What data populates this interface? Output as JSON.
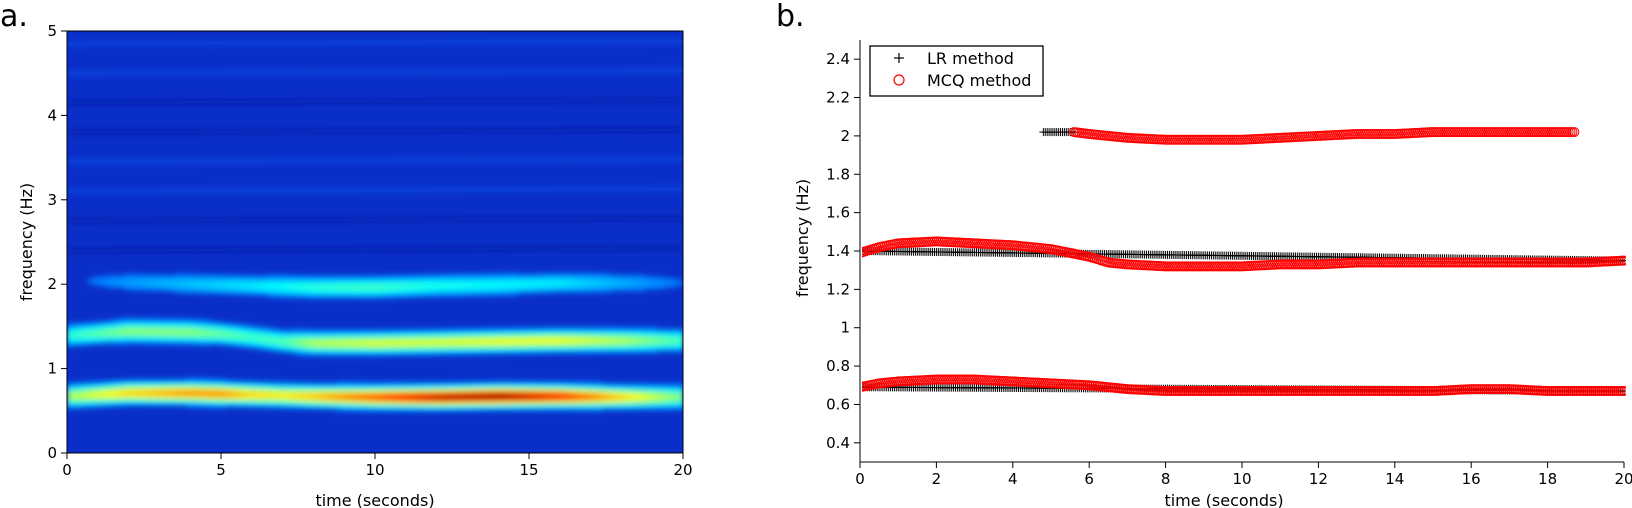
{
  "chart_data": [
    {
      "panel": "a.",
      "type": "heatmap",
      "title": "",
      "xlabel": "time (seconds)",
      "ylabel": "frequency (Hz)",
      "xlim": [
        0,
        20
      ],
      "ylim": [
        0,
        5
      ],
      "xticks": [
        "0",
        "5",
        "10",
        "15",
        "20"
      ],
      "yticks": [
        "0",
        "1",
        "2",
        "3",
        "4",
        "5"
      ],
      "colormap": "jet",
      "ridges": [
        {
          "x": [
            0,
            2,
            4,
            5,
            6,
            7,
            8,
            10,
            12,
            14,
            16,
            18,
            20
          ],
          "y": [
            0.68,
            0.72,
            0.72,
            0.71,
            0.7,
            0.69,
            0.68,
            0.67,
            0.67,
            0.68,
            0.68,
            0.67,
            0.67
          ],
          "intensity": [
            0.55,
            0.68,
            0.75,
            0.75,
            0.68,
            0.65,
            0.7,
            0.82,
            0.95,
            1.0,
            0.88,
            0.68,
            0.5
          ]
        },
        {
          "x": [
            0,
            2,
            4,
            5,
            6,
            7,
            8,
            10,
            12,
            14,
            16,
            18,
            20
          ],
          "y": [
            1.4,
            1.45,
            1.44,
            1.42,
            1.38,
            1.33,
            1.31,
            1.31,
            1.32,
            1.33,
            1.34,
            1.34,
            1.34
          ],
          "intensity": [
            0.42,
            0.52,
            0.52,
            0.48,
            0.44,
            0.46,
            0.56,
            0.6,
            0.6,
            0.62,
            0.62,
            0.56,
            0.45
          ]
        },
        {
          "x": [
            0,
            2,
            4,
            6,
            8,
            10,
            12,
            14,
            16,
            18,
            20
          ],
          "y": [
            2.05,
            2.03,
            2.01,
            1.99,
            1.97,
            1.97,
            1.99,
            2.0,
            2.02,
            2.02,
            2.02
          ],
          "intensity": [
            0.22,
            0.28,
            0.32,
            0.36,
            0.42,
            0.44,
            0.4,
            0.38,
            0.36,
            0.3,
            0.24
          ]
        }
      ]
    },
    {
      "panel": "b.",
      "type": "scatter",
      "title": "",
      "xlabel": "time (seconds)",
      "ylabel": "frequency (Hz)",
      "xlim": [
        0,
        20
      ],
      "ylim": [
        0.3,
        2.5
      ],
      "xticks": [
        "0",
        "2",
        "4",
        "6",
        "8",
        "10",
        "12",
        "14",
        "16",
        "18",
        "20"
      ],
      "yticks": [
        "0.4",
        "0.6",
        "0.8",
        "1",
        "1.2",
        "1.4",
        "1.6",
        "1.8",
        "2",
        "2.2",
        "2.4"
      ],
      "legend_position": "top-left",
      "series": [
        {
          "name": "LR method",
          "marker": "plus",
          "color": "#000000",
          "tracks": [
            {
              "x": [
                4.8,
                5.0,
                5.2,
                5.4,
                5.6
              ],
              "y": [
                2.02,
                2.02,
                2.02,
                2.02,
                2.02
              ]
            },
            {
              "x": [
                0,
                20
              ],
              "y": [
                1.4,
                1.35
              ]
            },
            {
              "x": [
                0,
                20
              ],
              "y": [
                0.69,
                0.67
              ]
            }
          ]
        },
        {
          "name": "MCQ method",
          "marker": "circle",
          "color": "#ff0000",
          "tracks": [
            {
              "x": [
                5.6,
                6,
                7,
                8,
                9,
                10,
                11,
                12,
                13,
                14,
                15,
                16,
                17,
                18,
                18.7
              ],
              "y": [
                2.02,
                2.01,
                1.99,
                1.98,
                1.98,
                1.98,
                1.99,
                2.0,
                2.01,
                2.01,
                2.02,
                2.02,
                2.02,
                2.02,
                2.02
              ]
            },
            {
              "x": [
                0,
                0.5,
                1,
                2,
                3,
                4,
                5,
                5.5,
                6,
                6.5,
                7,
                8,
                9,
                10,
                11,
                12,
                13,
                14,
                15,
                16,
                17,
                18,
                19,
                20
              ],
              "y": [
                1.39,
                1.42,
                1.44,
                1.45,
                1.44,
                1.43,
                1.41,
                1.39,
                1.37,
                1.34,
                1.33,
                1.32,
                1.32,
                1.32,
                1.33,
                1.33,
                1.34,
                1.34,
                1.34,
                1.34,
                1.34,
                1.34,
                1.34,
                1.35
              ]
            },
            {
              "x": [
                0,
                0.5,
                1,
                2,
                3,
                4,
                5,
                6,
                7,
                8,
                9,
                10,
                11,
                12,
                13,
                14,
                15,
                16,
                17,
                18,
                19,
                20
              ],
              "y": [
                0.69,
                0.71,
                0.72,
                0.73,
                0.73,
                0.72,
                0.71,
                0.7,
                0.68,
                0.67,
                0.67,
                0.67,
                0.67,
                0.67,
                0.67,
                0.67,
                0.67,
                0.68,
                0.68,
                0.67,
                0.67,
                0.67
              ]
            }
          ]
        }
      ]
    }
  ]
}
